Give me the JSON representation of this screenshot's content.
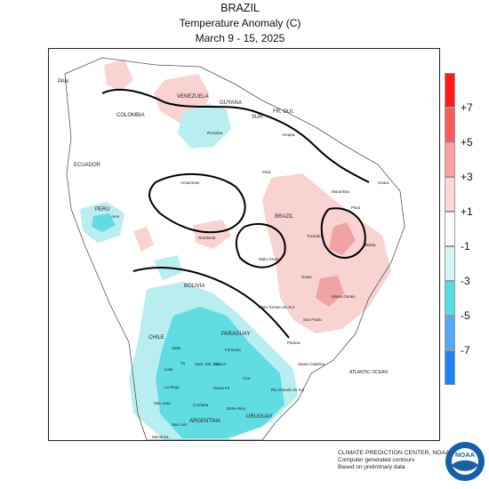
{
  "titles": {
    "line1": "BRAZIL",
    "line2": "Temperature Anomaly (C)",
    "line3": "March 9 - 15, 2025"
  },
  "legend": {
    "ticks": [
      "+7",
      "+5",
      "+3",
      "+1",
      "-1",
      "-3",
      "-5",
      "-7"
    ],
    "colors": [
      "#ff1a1a",
      "#ff5a5a",
      "#ff9f9f",
      "#fcd5d5",
      "#ffffff",
      "#d2f5f5",
      "#55dde6",
      "#55a8f5",
      "#1e82f5"
    ]
  },
  "colors": {
    "warm_light": "#f9d2d2",
    "warm_mid": "#f0a3a3",
    "cool_light": "#b9eef0",
    "cool_mid": "#5fdde3",
    "ocean_label": "#1a4fb3"
  },
  "map_labels": {
    "pan": "PAN",
    "venezuela": "VENEZUELA",
    "guyana": "GUYANA",
    "suriname": "SUR",
    "fr_guiana": "FR. GUI.",
    "colombia": "COLOMBIA",
    "ecuador": "ECUADOR",
    "peru": "PERU",
    "bolivia": "BOLIVIA",
    "chile": "CHILE",
    "paraguay": "PARAGUAY",
    "argentina": "ARGENTINA",
    "uruguay": "URUGUAY",
    "brazil": "BRAZIL",
    "atlantic_ocean": "ATLANTIC OCEAN",
    "roraima": "Roraima",
    "amapa": "Amapa",
    "amazonas": "Amazonas",
    "para": "Para",
    "maranhao": "Maranhao",
    "ceara": "Ceara",
    "piaui": "Piaui",
    "acre": "Acre",
    "rondonia": "Rondonia",
    "tocantins": "Tocantins",
    "bahia": "Bahia",
    "mato_grosso": "Mato Grosso",
    "goias": "Goias",
    "minas_gerais": "Minas Gerais",
    "mato_grosso_do_sul": "Mato Grosso do Sul",
    "sao_paulo": "Sao Paulo",
    "parana": "Parana",
    "santa_catarina": "Santa Catarina",
    "rio_grande_do_sul": "Rio Grande do Sul",
    "salta": "Salta",
    "formosa": "Formosa",
    "chaco": "Chaco",
    "corrientes": "Corr",
    "santiago_del_estero": "Sant. Del. Est.",
    "tucuman": "Tu",
    "catamarca": "Cata",
    "la_rioja": "La Rioja",
    "santa_fe": "Santa Fe",
    "entre_rios": "Entre Rios",
    "cordoba": "Cordoba",
    "san_luis": "San Luis",
    "san_juan": "San Juan",
    "mendoza": "Mendoza"
  },
  "footer": {
    "line1": "CLIMATE PREDICTION CENTER, NOAA",
    "line2": "Computer generated contours",
    "line3": "Based on preliminary data"
  },
  "logo_text": "NOAA"
}
